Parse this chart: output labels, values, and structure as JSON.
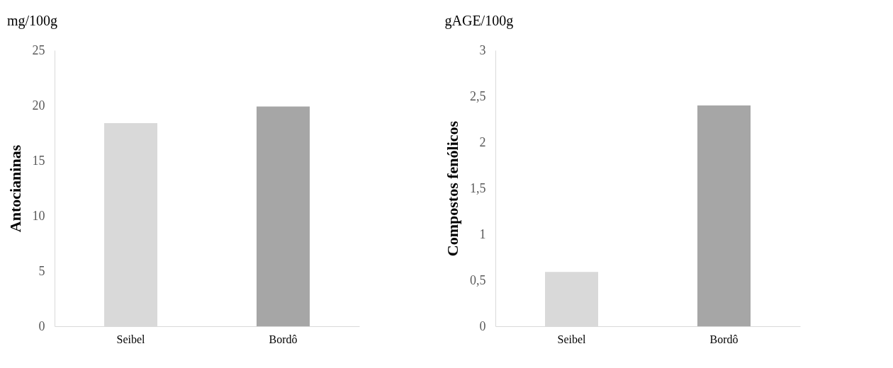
{
  "chart_data": [
    {
      "type": "bar",
      "title": "mg/100g",
      "ylabel": "Antocianinas",
      "categories": [
        "Seibel",
        "Bordô"
      ],
      "values": [
        18.4,
        19.9
      ],
      "colors": [
        "#d9d9d9",
        "#a6a6a6"
      ],
      "ylim": [
        0,
        25
      ],
      "yticks": [
        0,
        5,
        10,
        15,
        20,
        25
      ],
      "grid": false
    },
    {
      "type": "bar",
      "title": "gAGE/100g",
      "ylabel": "Compostos fenólicos",
      "categories": [
        "Seibel",
        "Bordô"
      ],
      "values": [
        0.59,
        2.4
      ],
      "colors": [
        "#d9d9d9",
        "#a6a6a6"
      ],
      "ylim": [
        0,
        3
      ],
      "yticks": [
        0,
        {
          "value": 0.5,
          "label": "0,5"
        },
        1,
        {
          "value": 1.5,
          "label": "1,5"
        },
        2,
        {
          "value": 2.5,
          "label": "2,5"
        },
        3
      ],
      "grid": false
    }
  ]
}
